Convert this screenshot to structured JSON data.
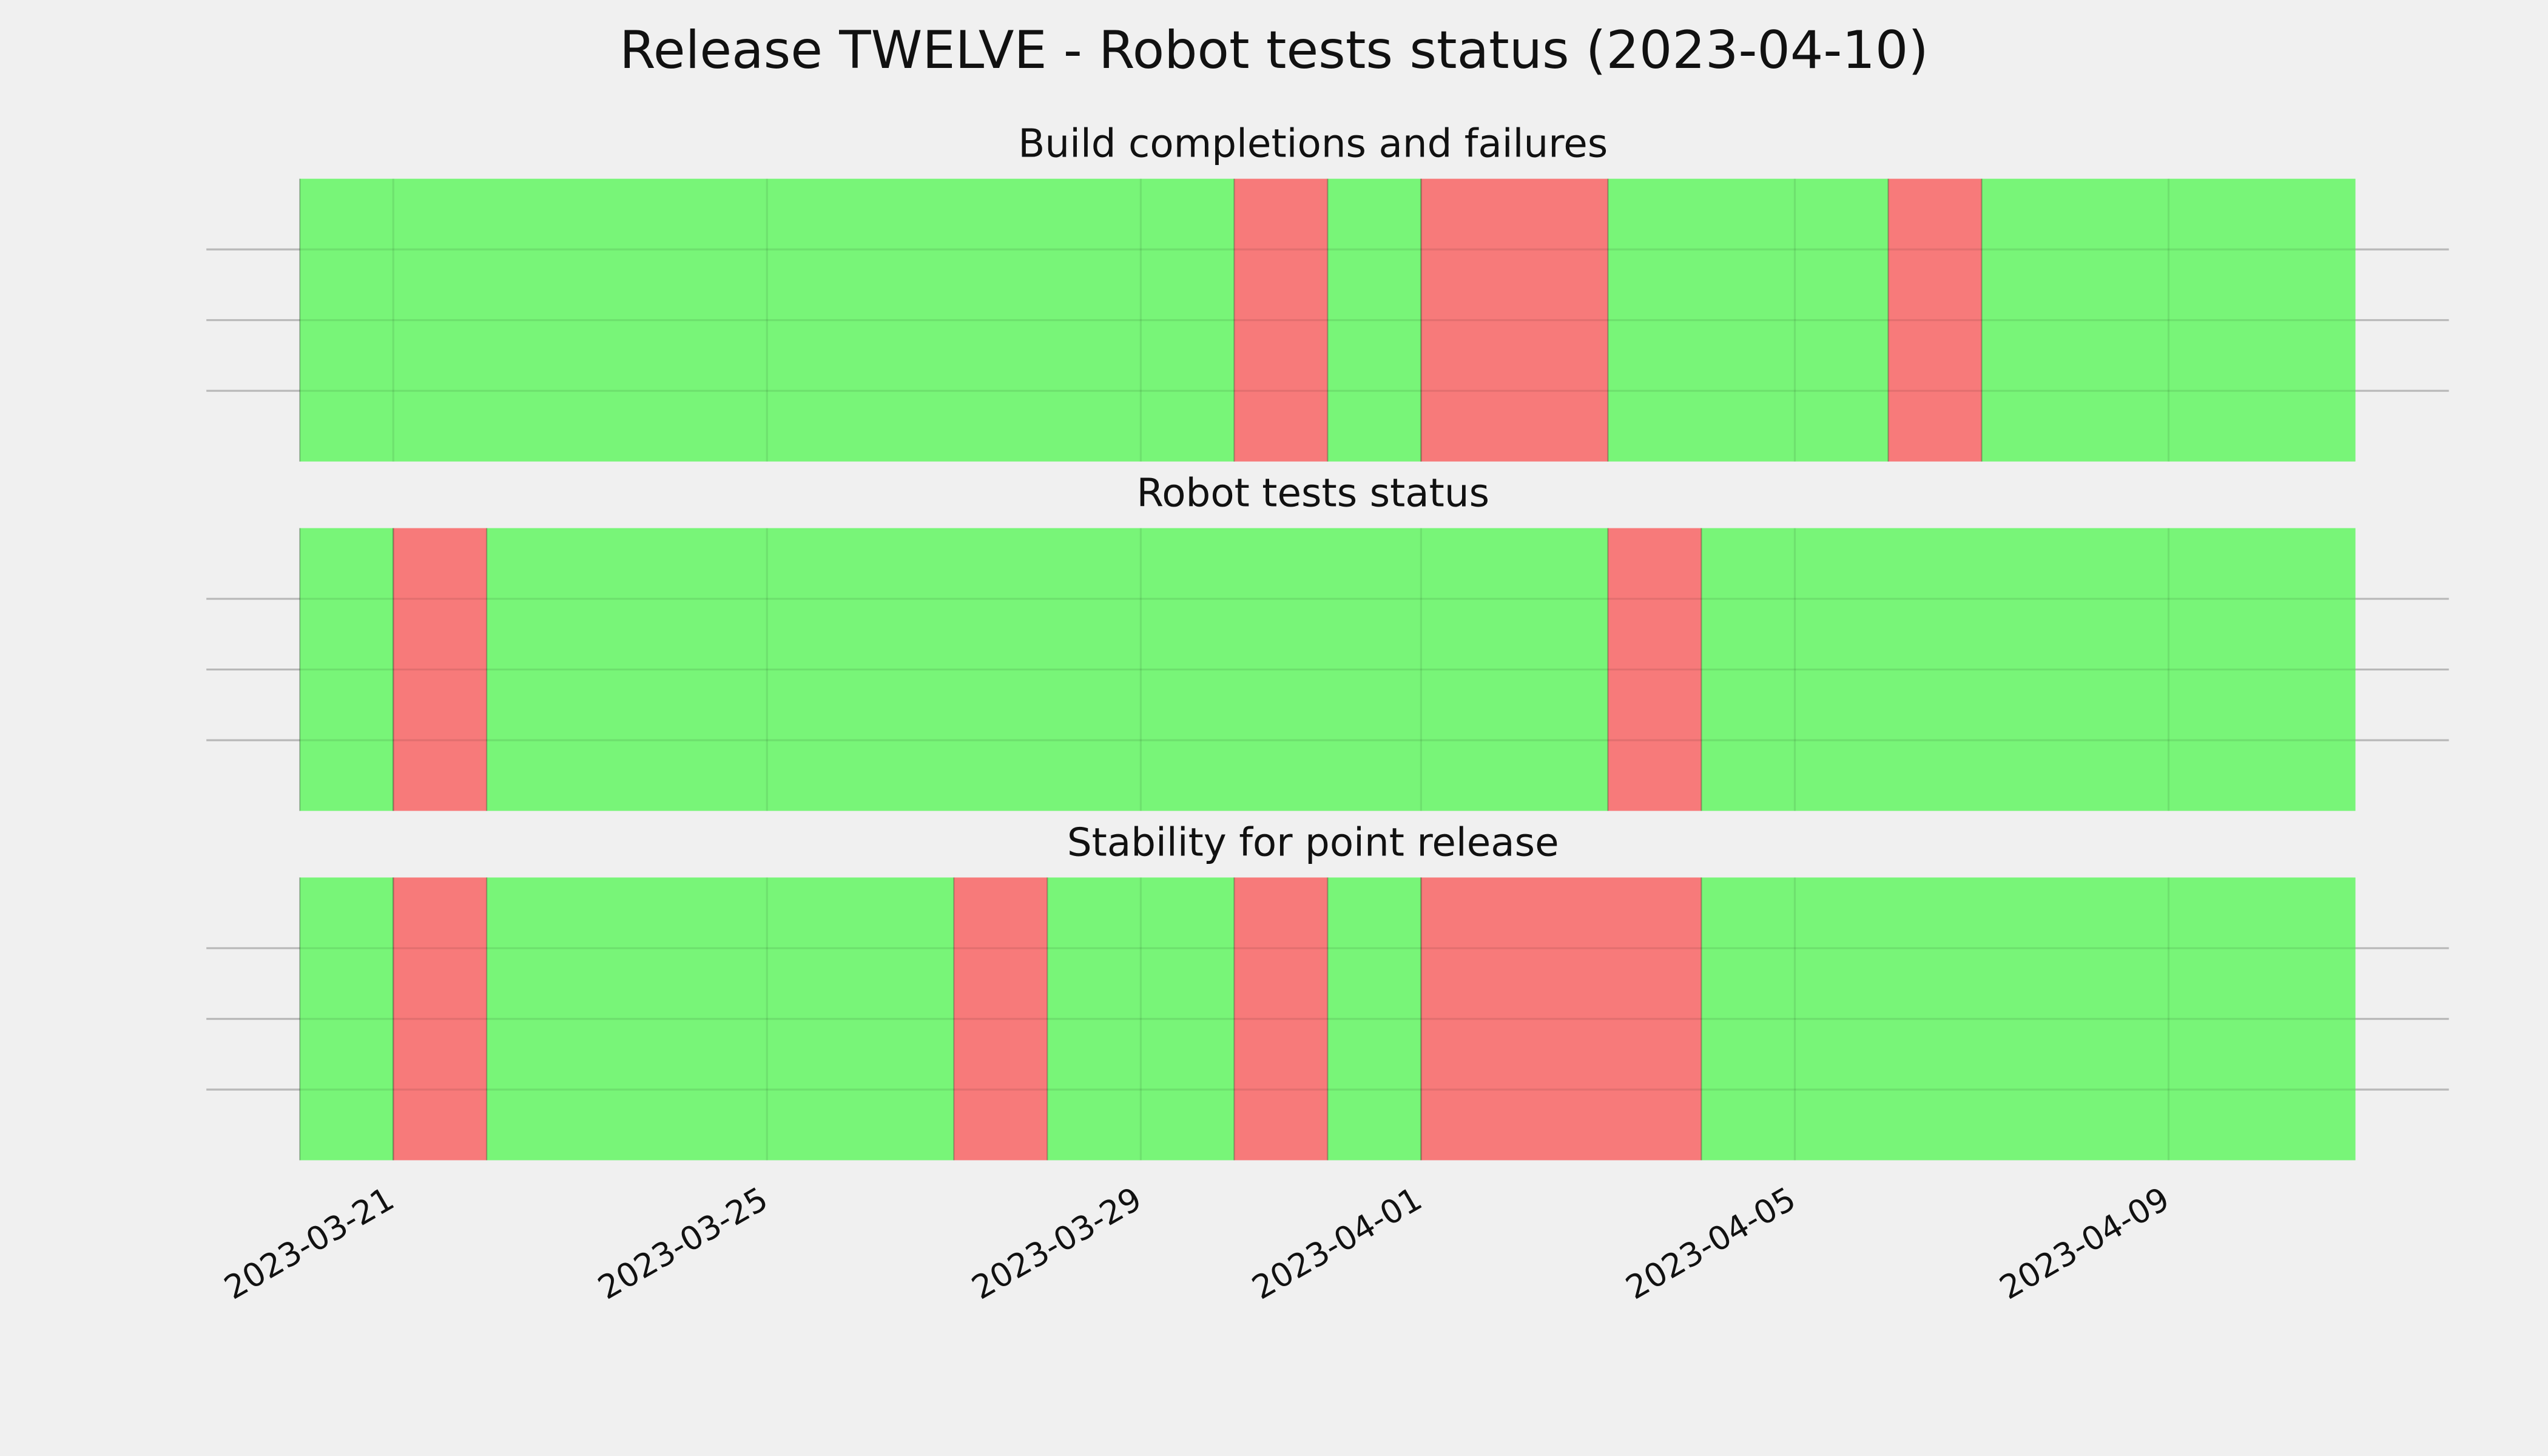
{
  "title": "Release TWELVE - Robot tests status (2023-04-10)",
  "chart_data": [
    {
      "type": "timeline",
      "title": "Build completions and failures",
      "xlim": [
        "2023-03-19",
        "2023-04-12"
      ],
      "ylim": [
        0,
        1
      ],
      "yticks": [
        0.25,
        0.5,
        0.75
      ],
      "xticks": [
        "2023-03-21",
        "2023-03-25",
        "2023-03-29",
        "2023-04-01",
        "2023-04-05",
        "2023-04-09"
      ],
      "grid": true,
      "segments": [
        {
          "start": "2023-03-20",
          "end": "2023-03-30",
          "color": "#74f574"
        },
        {
          "start": "2023-03-30",
          "end": "2023-03-31",
          "color": "#f77676"
        },
        {
          "start": "2023-03-31",
          "end": "2023-04-01",
          "color": "#74f574"
        },
        {
          "start": "2023-04-01",
          "end": "2023-04-03",
          "color": "#f77676"
        },
        {
          "start": "2023-04-03",
          "end": "2023-04-06",
          "color": "#74f574"
        },
        {
          "start": "2023-04-06",
          "end": "2023-04-07",
          "color": "#f77676"
        },
        {
          "start": "2023-04-07",
          "end": "2023-04-11",
          "color": "#74f574"
        }
      ]
    },
    {
      "type": "timeline",
      "title": "Robot tests status",
      "xlim": [
        "2023-03-19",
        "2023-04-12"
      ],
      "ylim": [
        0,
        1
      ],
      "yticks": [
        0.25,
        0.5,
        0.75
      ],
      "xticks": [
        "2023-03-21",
        "2023-03-25",
        "2023-03-29",
        "2023-04-01",
        "2023-04-05",
        "2023-04-09"
      ],
      "grid": true,
      "segments": [
        {
          "start": "2023-03-20",
          "end": "2023-03-21",
          "color": "#74f574"
        },
        {
          "start": "2023-03-21",
          "end": "2023-03-22",
          "color": "#f77676"
        },
        {
          "start": "2023-03-22",
          "end": "2023-04-03",
          "color": "#74f574"
        },
        {
          "start": "2023-04-03",
          "end": "2023-04-04",
          "color": "#f77676"
        },
        {
          "start": "2023-04-04",
          "end": "2023-04-11",
          "color": "#74f574"
        }
      ]
    },
    {
      "type": "timeline",
      "title": "Stability for point release",
      "xlim": [
        "2023-03-19",
        "2023-04-12"
      ],
      "ylim": [
        0,
        1
      ],
      "yticks": [
        0.25,
        0.5,
        0.75
      ],
      "xticks": [
        "2023-03-21",
        "2023-03-25",
        "2023-03-29",
        "2023-04-01",
        "2023-04-05",
        "2023-04-09"
      ],
      "grid": true,
      "segments": [
        {
          "start": "2023-03-20",
          "end": "2023-03-21",
          "color": "#74f574"
        },
        {
          "start": "2023-03-21",
          "end": "2023-03-22",
          "color": "#f77676"
        },
        {
          "start": "2023-03-22",
          "end": "2023-03-27",
          "color": "#74f574"
        },
        {
          "start": "2023-03-27",
          "end": "2023-03-28",
          "color": "#f77676"
        },
        {
          "start": "2023-03-28",
          "end": "2023-03-30",
          "color": "#74f574"
        },
        {
          "start": "2023-03-30",
          "end": "2023-03-31",
          "color": "#f77676"
        },
        {
          "start": "2023-03-31",
          "end": "2023-04-01",
          "color": "#74f574"
        },
        {
          "start": "2023-04-01",
          "end": "2023-04-04",
          "color": "#f77676"
        },
        {
          "start": "2023-04-04",
          "end": "2023-04-11",
          "color": "#74f574"
        }
      ]
    }
  ]
}
